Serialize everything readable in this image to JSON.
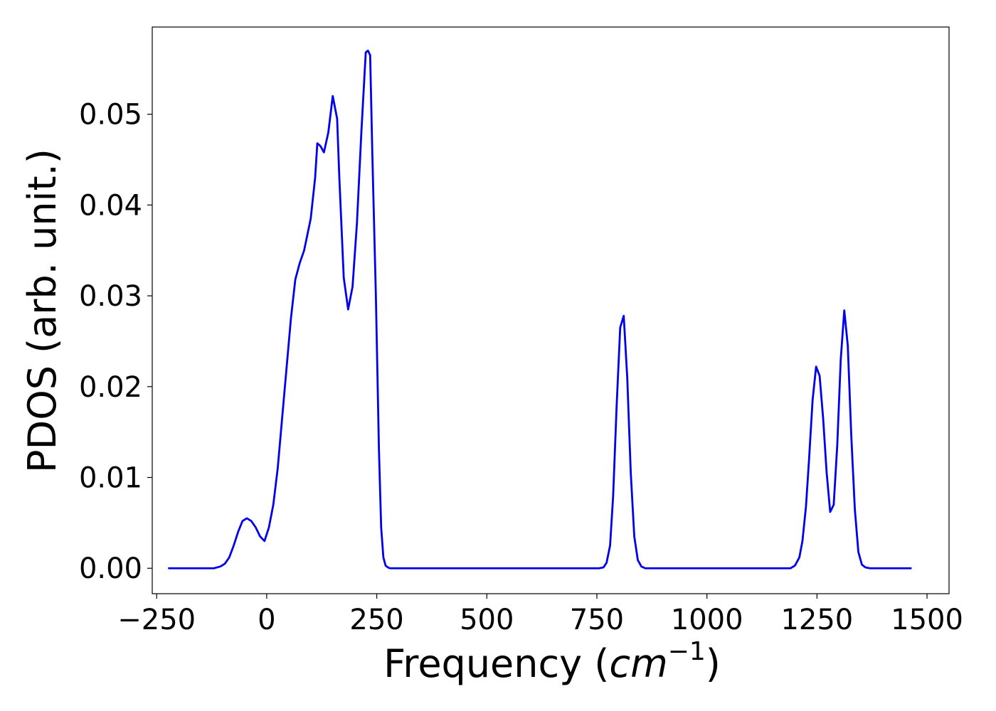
{
  "chart_data": {
    "type": "line",
    "title": "",
    "xlabel_prefix": "Frequency (",
    "xlabel_math": "cm",
    "xlabel_exponent": "−1",
    "xlabel_suffix": ")",
    "ylabel": "PDOS (arb. unit.)",
    "xlim": [
      -260,
      1550
    ],
    "ylim": [
      -0.0028,
      0.0596
    ],
    "xticks": [
      -250,
      0,
      250,
      500,
      750,
      1000,
      1250,
      1500
    ],
    "xtick_labels": [
      "−250",
      "0",
      "250",
      "500",
      "750",
      "1000",
      "1250",
      "1500"
    ],
    "yticks": [
      0.0,
      0.01,
      0.02,
      0.03,
      0.04,
      0.05
    ],
    "ytick_labels": [
      "0.00",
      "0.01",
      "0.02",
      "0.03",
      "0.04",
      "0.05"
    ],
    "grid": false,
    "legend": "none",
    "series": [
      {
        "color": "#0000ee",
        "x": [
          -224,
          -150,
          -120,
          -105,
          -95,
          -85,
          -75,
          -65,
          -55,
          -45,
          -35,
          -25,
          -15,
          -5,
          5,
          15,
          25,
          35,
          45,
          55,
          65,
          75,
          85,
          100,
          110,
          115,
          122,
          130,
          140,
          150,
          160,
          165,
          175,
          185,
          195,
          205,
          215,
          225,
          230,
          235,
          240,
          248,
          255,
          260,
          265,
          270,
          275,
          280,
          290,
          300,
          400,
          600,
          755,
          765,
          772,
          780,
          787,
          795,
          803,
          811,
          819,
          827,
          835,
          843,
          851,
          860,
          870,
          900,
          1100,
          1190,
          1200,
          1210,
          1217,
          1225,
          1232,
          1240,
          1248,
          1256,
          1264,
          1272,
          1280,
          1288,
          1296,
          1304,
          1312,
          1320,
          1328,
          1336,
          1344,
          1352,
          1360,
          1370,
          1385,
          1465
        ],
        "y": [
          0.0,
          0.0,
          0.0,
          0.0002,
          0.0005,
          0.0012,
          0.0025,
          0.004,
          0.0052,
          0.0055,
          0.0052,
          0.0045,
          0.0035,
          0.003,
          0.0045,
          0.007,
          0.011,
          0.0165,
          0.022,
          0.0275,
          0.0318,
          0.0336,
          0.035,
          0.0385,
          0.043,
          0.0468,
          0.0465,
          0.0458,
          0.048,
          0.052,
          0.0495,
          0.043,
          0.032,
          0.0285,
          0.031,
          0.038,
          0.048,
          0.0568,
          0.057,
          0.0565,
          0.0455,
          0.03,
          0.013,
          0.0045,
          0.0012,
          0.0003,
          0.0001,
          0.0,
          0.0,
          0.0,
          0.0,
          0.0,
          0.0,
          0.0001,
          0.0006,
          0.0025,
          0.008,
          0.018,
          0.0265,
          0.0278,
          0.021,
          0.0105,
          0.0035,
          0.0009,
          0.0002,
          0.0,
          0.0,
          0.0,
          0.0,
          0.0,
          0.0003,
          0.0012,
          0.003,
          0.0068,
          0.012,
          0.0185,
          0.0222,
          0.0212,
          0.0165,
          0.0105,
          0.0062,
          0.007,
          0.0135,
          0.023,
          0.0284,
          0.0245,
          0.0145,
          0.0065,
          0.0018,
          0.0004,
          0.0001,
          0.0,
          0.0,
          0.0
        ]
      }
    ]
  }
}
